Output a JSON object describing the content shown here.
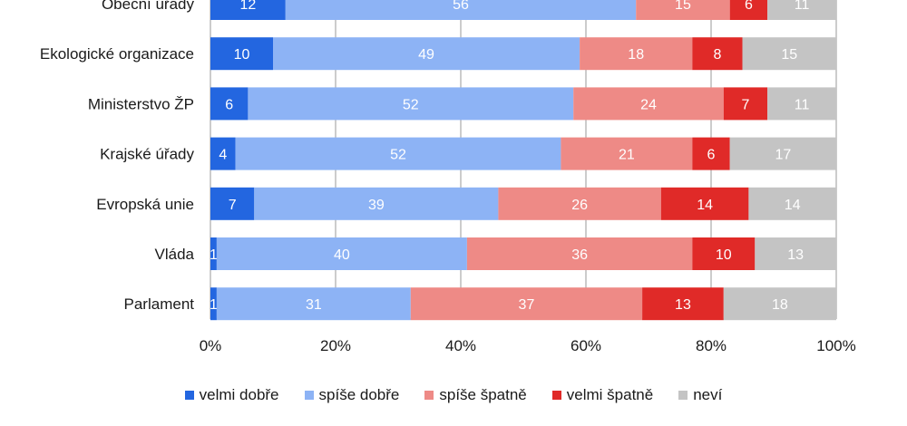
{
  "chart_data": {
    "type": "bar",
    "orientation": "horizontal",
    "stacked": "percent",
    "categories": [
      "Obecní úřady",
      "Ekologické organizace",
      "Ministerstvo ŽP",
      "Krajské úřady",
      "Evropská unie",
      "Vláda",
      "Parlament"
    ],
    "series": [
      {
        "name": "velmi dobře",
        "color": "#2366e0",
        "values": [
          12,
          10,
          6,
          4,
          7,
          1,
          1
        ]
      },
      {
        "name": "spíše dobře",
        "color": "#8db3f5",
        "values": [
          56,
          49,
          52,
          52,
          39,
          40,
          31
        ]
      },
      {
        "name": "spíše špatně",
        "color": "#ee8a86",
        "values": [
          15,
          18,
          24,
          21,
          26,
          36,
          37
        ]
      },
      {
        "name": "velmi špatně",
        "color": "#e02a28",
        "values": [
          6,
          8,
          7,
          6,
          14,
          10,
          13
        ]
      },
      {
        "name": "neví",
        "color": "#c4c4c4",
        "values": [
          11,
          15,
          11,
          17,
          14,
          13,
          18
        ]
      }
    ],
    "x_ticks": [
      "0%",
      "20%",
      "40%",
      "60%",
      "80%",
      "100%"
    ],
    "xlim": [
      0,
      100
    ],
    "grid": true,
    "legend_position": "bottom"
  }
}
